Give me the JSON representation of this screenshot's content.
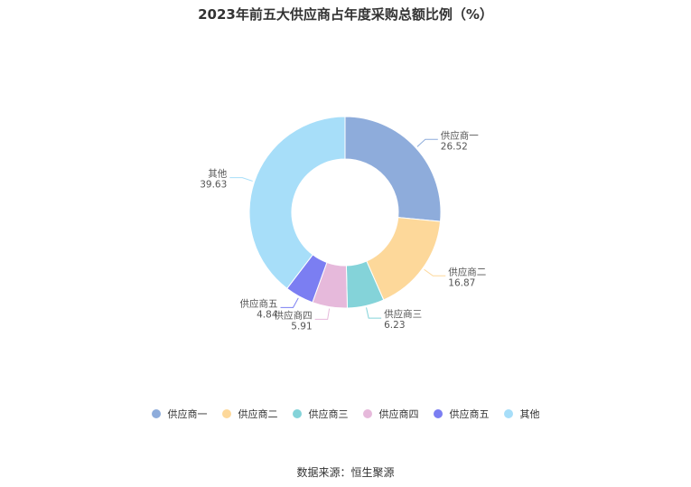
{
  "chart_data": {
    "type": "pie",
    "title": "2023年前五大供应商占年度采购总额比例（%）",
    "categories": [
      "供应商一",
      "供应商二",
      "供应商三",
      "供应商四",
      "供应商五",
      "其他"
    ],
    "values": [
      26.52,
      16.87,
      6.23,
      5.91,
      4.84,
      39.63
    ],
    "value_labels": [
      "26.52",
      "16.87",
      "6.23",
      "5.91",
      "4.84",
      "39.63"
    ],
    "colors": [
      "#8eacdb",
      "#fdd89a",
      "#84d3d9",
      "#e6b9db",
      "#7b7ef2",
      "#a7def9"
    ],
    "donut": true,
    "legend": "bottom"
  },
  "source": "数据来源：恒生聚源"
}
